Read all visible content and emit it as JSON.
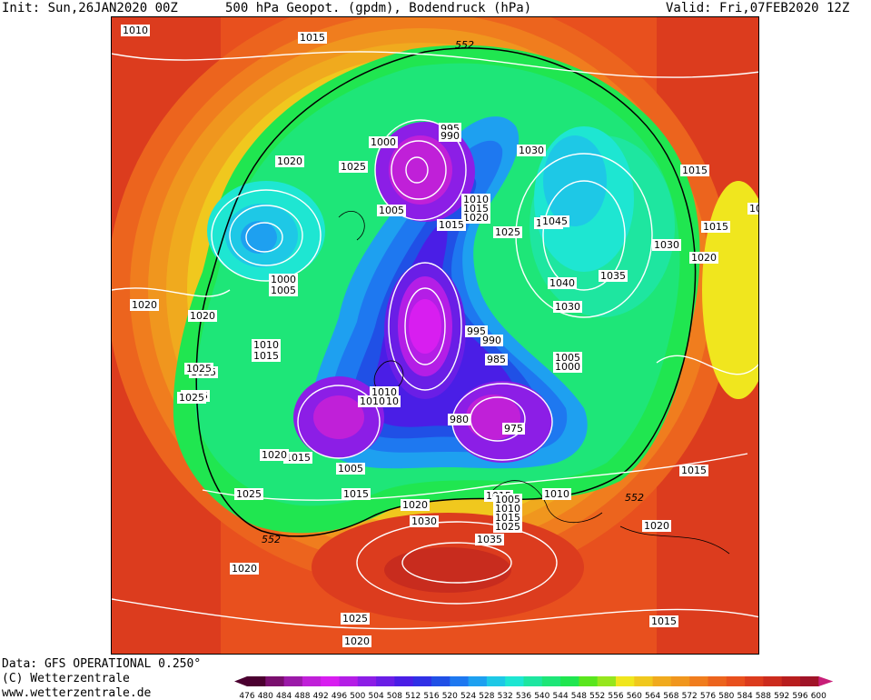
{
  "header": {
    "init": "Init: Sun,26JAN2020 00Z",
    "title": "500 hPa Geopot. (gpdm), Bodendruck (hPa)",
    "valid": "Valid: Fri,07FEB2020 12Z"
  },
  "footer": {
    "data_source": "Data: GFS OPERATIONAL 0.250°",
    "copyright": "(C) Wetterzentrale",
    "website": "www.wetterzentrale.de"
  },
  "scale": {
    "colors": [
      "#4b0030",
      "#7a0f6e",
      "#9b1aa8",
      "#c020d8",
      "#d81ef0",
      "#b41ee6",
      "#8c1ee6",
      "#6a1ee6",
      "#4a1ee6",
      "#3030e6",
      "#2050e6",
      "#1e78f0",
      "#1ea0f0",
      "#1ec8e6",
      "#1ee6d2",
      "#1ee6a0",
      "#1ee678",
      "#20e650",
      "#5ae61e",
      "#96e61e",
      "#f0e61e",
      "#f0c81e",
      "#f0aa1e",
      "#f0961e",
      "#f07d1e",
      "#ec641e",
      "#e8501e",
      "#dc3c1e",
      "#cc2c1e",
      "#b81e1e",
      "#a01428",
      "#c81e78"
    ],
    "labels": [
      "476",
      "480",
      "484",
      "488",
      "492",
      "496",
      "500",
      "504",
      "508",
      "512",
      "516",
      "520",
      "524",
      "528",
      "532",
      "536",
      "540",
      "544",
      "548",
      "552",
      "556",
      "560",
      "564",
      "568",
      "572",
      "576",
      "580",
      "584",
      "588",
      "592",
      "596",
      "600"
    ]
  },
  "map": {
    "contour_552_label": "552",
    "pressure_labels": [
      {
        "t": "1015"
      },
      {
        "t": "1025"
      },
      {
        "t": "1020"
      },
      {
        "t": "1010"
      },
      {
        "t": "1015"
      },
      {
        "t": "1010"
      },
      {
        "t": "1020"
      },
      {
        "t": "1025"
      },
      {
        "t": "1000"
      },
      {
        "t": "995"
      },
      {
        "t": "990"
      },
      {
        "t": "1030"
      },
      {
        "t": "1005"
      },
      {
        "t": "1010"
      },
      {
        "t": "1015"
      },
      {
        "t": "1020"
      },
      {
        "t": "1025"
      },
      {
        "t": "1035"
      },
      {
        "t": "1045"
      },
      {
        "t": "1015"
      },
      {
        "t": "1030"
      },
      {
        "t": "1020"
      },
      {
        "t": "1000"
      },
      {
        "t": "1005"
      },
      {
        "t": "1040"
      },
      {
        "t": "1035"
      },
      {
        "t": "1030"
      },
      {
        "t": "1015"
      },
      {
        "t": "1020"
      },
      {
        "t": "1010"
      },
      {
        "t": "1015"
      },
      {
        "t": "995"
      },
      {
        "t": "990"
      },
      {
        "t": "985"
      },
      {
        "t": "1005"
      },
      {
        "t": "1000"
      },
      {
        "t": "1025"
      },
      {
        "t": "1025"
      },
      {
        "t": "1010"
      },
      {
        "t": "1010"
      },
      {
        "t": "1025"
      },
      {
        "t": "980"
      },
      {
        "t": "975"
      },
      {
        "t": "1015"
      },
      {
        "t": "1020"
      },
      {
        "t": "1015"
      },
      {
        "t": "1005"
      },
      {
        "t": "1025"
      },
      {
        "t": "1015"
      },
      {
        "t": "1020"
      },
      {
        "t": "1005"
      },
      {
        "t": "1010"
      },
      {
        "t": "1015"
      },
      {
        "t": "1025"
      },
      {
        "t": "1030"
      },
      {
        "t": "1010"
      },
      {
        "t": "1035"
      },
      {
        "t": "1020"
      },
      {
        "t": "1015"
      },
      {
        "t": "1020"
      },
      {
        "t": "1025"
      },
      {
        "t": "1020"
      },
      {
        "t": "1015"
      },
      {
        "t": "10"
      }
    ]
  }
}
